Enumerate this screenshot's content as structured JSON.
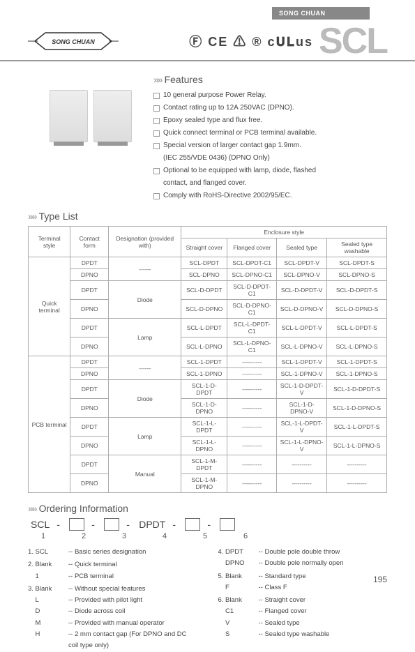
{
  "header": {
    "brand": "SONG CHUAN",
    "product_code": "SCL",
    "cert_icons": "Ⓕ CE ⚠ ® c𝐔𝐋us"
  },
  "features": {
    "title": "Features",
    "items": [
      "10 general purpose Power Relay.",
      "Contact rating up to 12A 250VAC (DPNO).",
      "Epoxy sealed type and flux free.",
      "Quick connect terminal or PCB terminal available.",
      "Special version of larger contact gap 1.9mm.",
      "(IEC 255/VDE 0436) (DPNO Only)",
      "Optional to be equipped with lamp, diode, flashed",
      "contact, and flanged cover.",
      "Comply with RoHS-Directive 2002/95/EC."
    ]
  },
  "type_list": {
    "title": "Type List",
    "head": {
      "terminal": "Terminal style",
      "contact": "Contact form",
      "designation": "Designation (provided with)",
      "enclosure": "Enclosure style",
      "cols": [
        "Straight cover",
        "Flanged cover",
        "Sealed type",
        "Sealed type washable"
      ]
    },
    "rows": [
      {
        "term": "Quick terminal",
        "term_rows": 6,
        "contact": "DPDT",
        "desig": "------",
        "desig_rows": 2,
        "c": [
          "SCL-DPDT",
          "SCL-DPDT-C1",
          "SCL-DPDT-V",
          "SCL-DPDT-S"
        ]
      },
      {
        "contact": "DPNO",
        "c": [
          "SCL-DPNO",
          "SCL-DPNO-C1",
          "SCL-DPNO-V",
          "SCL-DPNO-S"
        ]
      },
      {
        "contact": "DPDT",
        "desig": "Diode",
        "desig_rows": 2,
        "c": [
          "SCL-D-DPDT",
          "SCL-D-DPDT-C1",
          "SCL-D-DPDT-V",
          "SCL-D-DPDT-S"
        ]
      },
      {
        "contact": "DPNO",
        "c": [
          "SCL-D-DPNO",
          "SCL-D-DPNO-C1",
          "SCL-D-DPNO-V",
          "SCL-D-DPNO-S"
        ]
      },
      {
        "contact": "DPDT",
        "desig": "Lamp",
        "desig_rows": 2,
        "c": [
          "SCL-L-DPDT",
          "SCL-L-DPDT-C1",
          "SCL-L-DPDT-V",
          "SCL-L-DPDT-S"
        ]
      },
      {
        "contact": "DPNO",
        "c": [
          "SCL-L-DPNO",
          "SCL-L-DPNO-C1",
          "SCL-L-DPNO-V",
          "SCL-L-DPNO-S"
        ]
      },
      {
        "term": "PCB terminal",
        "term_rows": 8,
        "contact": "DPDT",
        "desig": "------",
        "desig_rows": 2,
        "c": [
          "SCL-1-DPDT",
          "----------",
          "SCL-1-DPDT-V",
          "SCL-1-DPDT-S"
        ]
      },
      {
        "contact": "DPNO",
        "c": [
          "SCL-1-DPNO",
          "----------",
          "SCL-1-DPNO-V",
          "SCL-1-DPNO-S"
        ]
      },
      {
        "contact": "DPDT",
        "desig": "Diode",
        "desig_rows": 2,
        "c": [
          "SCL-1-D-DPDT",
          "----------",
          "SCL-1-D-DPDT-V",
          "SCL-1-D-DPDT-S"
        ]
      },
      {
        "contact": "DPNO",
        "c": [
          "SCL-1-D-DPNO",
          "----------",
          "SCL-1-D-DPNO-V",
          "SCL-1-D-DPNO-S"
        ]
      },
      {
        "contact": "DPDT",
        "desig": "Lamp",
        "desig_rows": 2,
        "c": [
          "SCL-1-L-DPDT",
          "----------",
          "SCL-1-L-DPDT-V",
          "SCL-1-L-DPDT-S"
        ]
      },
      {
        "contact": "DPNO",
        "c": [
          "SCL-1-L-DPNO",
          "----------",
          "SCL-1-L-DPNO-V",
          "SCL-1-L-DPNO-S"
        ]
      },
      {
        "contact": "DPDT",
        "desig": "Manual",
        "desig_rows": 2,
        "c": [
          "SCL-1-M-DPDT",
          "----------",
          "----------",
          "----------"
        ]
      },
      {
        "contact": "DPNO",
        "c": [
          "SCL-1-M-DPNO",
          "----------",
          "----------",
          "----------"
        ]
      }
    ]
  },
  "ordering": {
    "title": "Ordering Information",
    "code_parts": [
      "SCL",
      "-",
      "",
      "-",
      "",
      "-",
      "DPDT",
      "-",
      "",
      "-",
      ""
    ],
    "nums": [
      "1",
      "",
      "2",
      "",
      "3",
      "",
      "4",
      "",
      "5",
      "",
      "6"
    ],
    "left": [
      {
        "k": "1. SCL",
        "v": "-- Basic series designation"
      },
      {
        "k": "",
        "v": ""
      },
      {
        "k": "2. Blank",
        "v": "-- Quick terminal"
      },
      {
        "k": "    1",
        "v": "-- PCB terminal"
      },
      {
        "k": "",
        "v": ""
      },
      {
        "k": "3. Blank",
        "v": "-- Without special features"
      },
      {
        "k": "    L",
        "v": "-- Provided with pilot light"
      },
      {
        "k": "    D",
        "v": "-- Diode across coil"
      },
      {
        "k": "    M",
        "v": "-- Provided with manual operator"
      },
      {
        "k": "    H",
        "v": "-- 2 mm contact gap (For DPNO and DC"
      },
      {
        "k": "",
        "v": "   coil type only)"
      }
    ],
    "right": [
      {
        "k": "4. DPDT",
        "v": "-- Double pole double throw"
      },
      {
        "k": "    DPNO",
        "v": "-- Double pole normally open"
      },
      {
        "k": "",
        "v": ""
      },
      {
        "k": "5. Blank",
        "v": "-- Standard type"
      },
      {
        "k": "    F",
        "v": "-- Class F"
      },
      {
        "k": "",
        "v": ""
      },
      {
        "k": "6. Blank",
        "v": "-- Straight cover"
      },
      {
        "k": "    C1",
        "v": "-- Flanged cover"
      },
      {
        "k": "    V",
        "v": "-- Sealed type"
      },
      {
        "k": "    S",
        "v": "-- Sealed type washable"
      }
    ]
  },
  "page_number": "195"
}
